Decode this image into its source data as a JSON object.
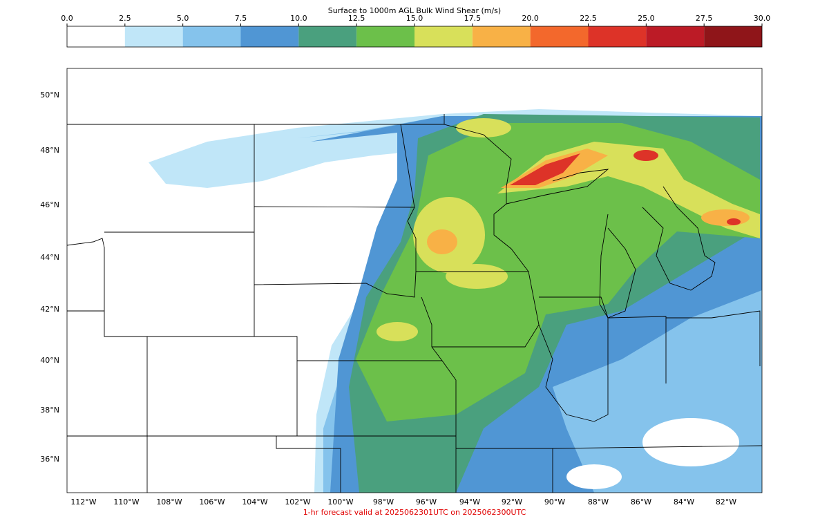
{
  "title": "Surface to 1000m AGL Bulk Wind Shear (m/s)",
  "colorbar": {
    "lim": [
      0,
      30
    ],
    "ticks": [
      {
        "value": 0,
        "label": "0.0"
      },
      2.5,
      {
        "value": 5,
        "label": "5.0"
      },
      7.5,
      {
        "value": 10,
        "label": "10.0"
      },
      12.5,
      {
        "value": 15,
        "label": "15.0"
      },
      17.5,
      {
        "value": 20,
        "label": "20.0"
      },
      22.5,
      {
        "value": 25,
        "label": "25.0"
      },
      27.5,
      {
        "value": 30,
        "label": "30.0"
      }
    ],
    "colors": [
      "#ffffff",
      "#c0e6f8",
      "#85c3ec",
      "#5096d4",
      "#4aa07e",
      "#6cc04a",
      "#d8e05a",
      "#f8b146",
      "#f3682c",
      "#dd3328",
      "#bc1b26",
      "#8f1519"
    ]
  },
  "map": {
    "lat_labels": [
      "50°N",
      "48°N",
      "46°N",
      "44°N",
      "42°N",
      "40°N",
      "38°N",
      "36°N"
    ],
    "lon_labels": [
      "112°W",
      "110°W",
      "108°W",
      "106°W",
      "104°W",
      "102°W",
      "100°W",
      "98°W",
      "96°W",
      "94°W",
      "92°W",
      "90°W",
      "88°W",
      "86°W",
      "84°W",
      "82°W"
    ]
  },
  "footer": "1-hr forecast valid at 2025062301UTC on 2025062300UTC"
}
